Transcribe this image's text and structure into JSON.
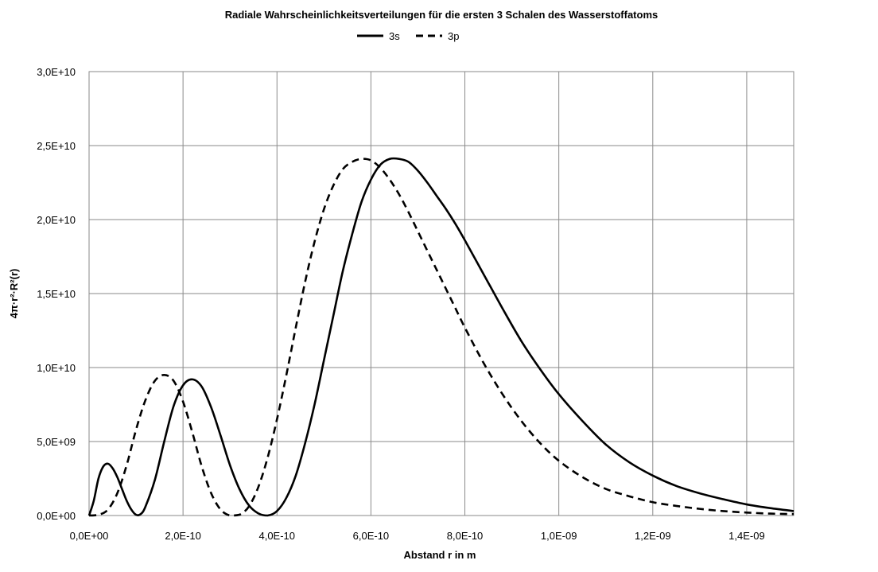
{
  "chart_data": {
    "type": "line",
    "title": "Radiale Wahrscheinlichkeitsverteilungen für die ersten 3 Schalen des Wasserstoffatoms",
    "xlabel": "Abstand r in m",
    "ylabel": "4π·r²·R²(r)",
    "xlim": [
      0,
      1.5e-09
    ],
    "ylim": [
      0,
      30000000000.0
    ],
    "grid": true,
    "legend_position": "top",
    "x_ticks": [
      {
        "value": 0,
        "label": "0,0E+00"
      },
      {
        "value": 2e-10,
        "label": "2,0E-10"
      },
      {
        "value": 4e-10,
        "label": "4,0E-10"
      },
      {
        "value": 6e-10,
        "label": "6,0E-10"
      },
      {
        "value": 8e-10,
        "label": "8,0E-10"
      },
      {
        "value": 1e-09,
        "label": "1,0E-09"
      },
      {
        "value": 1.2e-09,
        "label": "1,2E-09"
      },
      {
        "value": 1.4e-09,
        "label": "1,4E-09"
      }
    ],
    "y_ticks": [
      {
        "value": 0,
        "label": "0,0E+00"
      },
      {
        "value": 5000000000.0,
        "label": "5,0E+09"
      },
      {
        "value": 10000000000.0,
        "label": "1,0E+10"
      },
      {
        "value": 15000000000.0,
        "label": "1,5E+10"
      },
      {
        "value": 20000000000.0,
        "label": "2,0E+10"
      },
      {
        "value": 25000000000.0,
        "label": "2,5E+10"
      },
      {
        "value": 30000000000.0,
        "label": "3,0E+10"
      }
    ],
    "series": [
      {
        "name": "3s",
        "style": "solid",
        "color": "#000000",
        "x": [
          0,
          1e-11,
          2e-11,
          3e-11,
          4e-11,
          5e-11,
          6e-11,
          7e-11,
          8e-11,
          9e-11,
          1e-10,
          1.1e-10,
          1.2e-10,
          1.4e-10,
          1.6e-10,
          1.8e-10,
          2e-10,
          2.2e-10,
          2.4e-10,
          2.6e-10,
          2.8e-10,
          3e-10,
          3.2e-10,
          3.4e-10,
          3.6e-10,
          3.8e-10,
          4e-10,
          4.2e-10,
          4.4e-10,
          4.6e-10,
          4.8e-10,
          5e-10,
          5.2e-10,
          5.4e-10,
          5.6e-10,
          5.8e-10,
          6e-10,
          6.2e-10,
          6.4e-10,
          6.6e-10,
          6.8e-10,
          7e-10,
          7.2e-10,
          7.4e-10,
          7.6e-10,
          7.8e-10,
          8e-10,
          8.4e-10,
          8.8e-10,
          9.2e-10,
          9.6e-10,
          1e-09,
          1.05e-09,
          1.1e-09,
          1.15e-09,
          1.2e-09,
          1.25e-09,
          1.3e-09,
          1.35e-09,
          1.4e-09,
          1.45e-09,
          1.5e-09
        ],
        "values": [
          0,
          1000000000.0,
          2500000000.0,
          3300000000.0,
          3500000000.0,
          3200000000.0,
          2600000000.0,
          1800000000.0,
          1000000000.0,
          400000000.0,
          50000000.0,
          100000000.0,
          600000000.0,
          2400000000.0,
          5000000000.0,
          7400000000.0,
          8800000000.0,
          9200000000.0,
          8700000000.0,
          7300000000.0,
          5400000000.0,
          3400000000.0,
          1800000000.0,
          700000000.0,
          150000000.0,
          0,
          300000000.0,
          1200000000.0,
          2700000000.0,
          4900000000.0,
          7500000000.0,
          10500000000.0,
          13500000000.0,
          16500000000.0,
          19000000000.0,
          21200000000.0,
          22700000000.0,
          23700000000.0,
          24100000000.0,
          24100000000.0,
          23900000000.0,
          23300000000.0,
          22500000000.0,
          21600000000.0,
          20700000000.0,
          19700000000.0,
          18600000000.0,
          16300000000.0,
          14000000000.0,
          11800000000.0,
          9900000000.0,
          8200000000.0,
          6400000000.0,
          4800000000.0,
          3600000000.0,
          2700000000.0,
          2000000000.0,
          1500000000.0,
          1100000000.0,
          750000000.0,
          500000000.0,
          300000000.0
        ]
      },
      {
        "name": "3p",
        "style": "dashed",
        "color": "#000000",
        "x": [
          0,
          2e-11,
          4e-11,
          6e-11,
          8e-11,
          1e-10,
          1.2e-10,
          1.4e-10,
          1.6e-10,
          1.8e-10,
          2e-10,
          2.2e-10,
          2.4e-10,
          2.6e-10,
          2.8e-10,
          3e-10,
          3.2e-10,
          3.4e-10,
          3.6e-10,
          3.8e-10,
          4e-10,
          4.2e-10,
          4.4e-10,
          4.6e-10,
          4.8e-10,
          5e-10,
          5.2e-10,
          5.4e-10,
          5.6e-10,
          5.8e-10,
          6e-10,
          6.2e-10,
          6.4e-10,
          6.6e-10,
          6.8e-10,
          7e-10,
          7.2e-10,
          7.4e-10,
          7.6e-10,
          7.8e-10,
          8e-10,
          8.4e-10,
          8.8e-10,
          9.2e-10,
          9.6e-10,
          1e-09,
          1.05e-09,
          1.1e-09,
          1.15e-09,
          1.2e-09,
          1.25e-09,
          1.3e-09,
          1.35e-09,
          1.4e-09,
          1.45e-09,
          1.5e-09
        ],
        "values": [
          0,
          50000000.0,
          400000000.0,
          1500000000.0,
          3400000000.0,
          5800000000.0,
          7800000000.0,
          9100000000.0,
          9500000000.0,
          9100000000.0,
          7700000000.0,
          5600000000.0,
          3300000000.0,
          1500000000.0,
          400000000.0,
          0,
          50000000.0,
          600000000.0,
          1900000000.0,
          3900000000.0,
          6500000000.0,
          9500000000.0,
          12700000000.0,
          15800000000.0,
          18500000000.0,
          20700000000.0,
          22300000000.0,
          23400000000.0,
          23900000000.0,
          24100000000.0,
          24000000000.0,
          23500000000.0,
          22700000000.0,
          21700000000.0,
          20500000000.0,
          19200000000.0,
          17900000000.0,
          16600000000.0,
          15300000000.0,
          14000000000.0,
          12700000000.0,
          10300000000.0,
          8200000000.0,
          6400000000.0,
          4900000000.0,
          3700000000.0,
          2600000000.0,
          1800000000.0,
          1300000000.0,
          900000000.0,
          650000000.0,
          450000000.0,
          300000000.0,
          200000000.0,
          130000000.0,
          100000000.0
        ]
      }
    ]
  }
}
